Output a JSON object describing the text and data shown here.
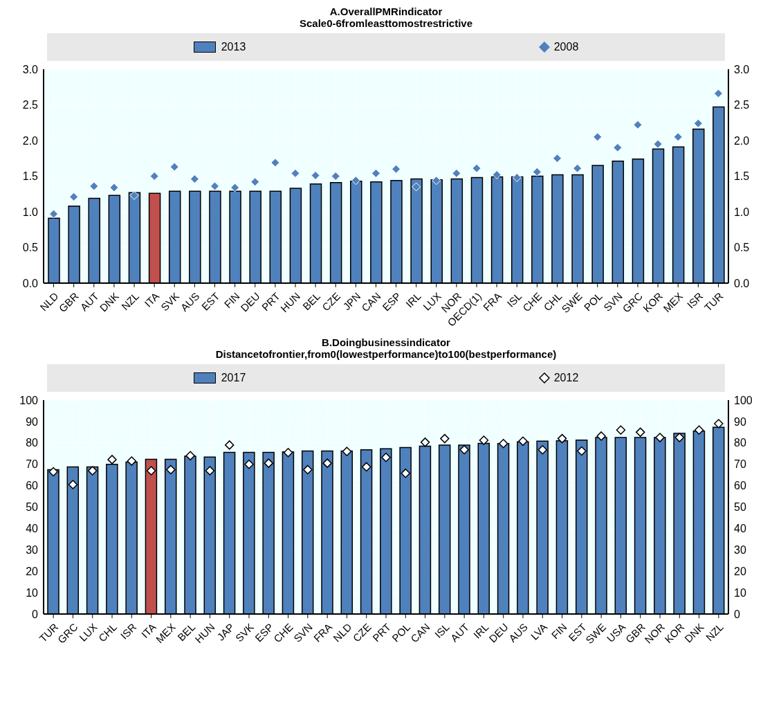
{
  "chart_data": [
    {
      "type": "bar",
      "title": "A.OverallPMRindicator",
      "subtitle": "Scale0-6fromleasttomostrestrictive",
      "categories": [
        "NLD",
        "GBR",
        "AUT",
        "DNK",
        "NZL",
        "ITA",
        "SVK",
        "AUS",
        "EST",
        "FIN",
        "DEU",
        "PRT",
        "HUN",
        "BEL",
        "CZE",
        "JPN",
        "CAN",
        "ESP",
        "IRL",
        "LUX",
        "NOR",
        "OECD(1)",
        "FRA",
        "ISL",
        "CHE",
        "CHL",
        "SWE",
        "POL",
        "SVN",
        "GRC",
        "KOR",
        "MEX",
        "ISR",
        "TUR"
      ],
      "series": [
        {
          "name": "2013",
          "type": "bar",
          "color": "#4f81bd",
          "colors": [
            "#4f81bd",
            "#4f81bd",
            "#4f81bd",
            "#4f81bd",
            "#4f81bd",
            "#c0504d",
            "#4f81bd",
            "#4f81bd",
            "#4f81bd",
            "#4f81bd",
            "#4f81bd",
            "#4f81bd",
            "#4f81bd",
            "#4f81bd",
            "#4f81bd",
            "#4f81bd",
            "#4f81bd",
            "#4f81bd",
            "#4f81bd",
            "#4f81bd",
            "#4f81bd",
            "#4f81bd",
            "#4f81bd",
            "#4f81bd",
            "#4f81bd",
            "#4f81bd",
            "#4f81bd",
            "#4f81bd",
            "#4f81bd",
            "#4f81bd",
            "#4f81bd",
            "#4f81bd",
            "#4f81bd",
            "#4f81bd"
          ],
          "values": [
            0.91,
            1.08,
            1.19,
            1.23,
            1.27,
            1.26,
            1.29,
            1.29,
            1.29,
            1.29,
            1.29,
            1.29,
            1.33,
            1.39,
            1.41,
            1.43,
            1.42,
            1.44,
            1.46,
            1.45,
            1.46,
            1.48,
            1.49,
            1.49,
            1.5,
            1.52,
            1.52,
            1.65,
            1.71,
            1.74,
            1.88,
            1.91,
            2.16,
            2.47
          ]
        },
        {
          "name": "2008",
          "type": "scatter",
          "color": "#4f81bd",
          "values": [
            0.97,
            1.21,
            1.36,
            1.34,
            1.23,
            1.5,
            1.63,
            1.46,
            1.36,
            1.34,
            1.42,
            1.69,
            1.54,
            1.51,
            1.5,
            1.44,
            1.54,
            1.6,
            1.35,
            1.44,
            1.54,
            1.61,
            1.52,
            1.48,
            1.56,
            1.75,
            1.61,
            2.05,
            1.9,
            2.22,
            1.95,
            2.05,
            2.24,
            2.66
          ]
        }
      ],
      "ylim": [
        0,
        3
      ],
      "yticks": [
        {
          "value": 0,
          "label": "0.0"
        },
        {
          "value": 0.5,
          "label": "0.5"
        },
        {
          "value": 1,
          "label": "1.0"
        },
        {
          "value": 1.5,
          "label": "1.5"
        },
        {
          "value": 2,
          "label": "2.0"
        },
        {
          "value": 2.5,
          "label": "2.5"
        },
        {
          "value": 3,
          "label": "3.0"
        }
      ],
      "y2lim": [
        0,
        3
      ],
      "y2ticks": [
        {
          "value": 0,
          "label": "0.0"
        },
        {
          "value": 0.5,
          "label": "0.5"
        },
        {
          "value": 1,
          "label": "1.0"
        },
        {
          "value": 1.5,
          "label": "1.5"
        },
        {
          "value": 2,
          "label": "2.0"
        },
        {
          "value": 2.5,
          "label": "2.5"
        },
        {
          "value": 3,
          "label": "3.0"
        }
      ],
      "grid": true,
      "legend": "top",
      "marker": "diamond"
    },
    {
      "type": "bar",
      "title": "B.Doingbusinessindicator",
      "subtitle": "Distancetofrontier,from0(lowestperformance)to100(bestperformance)",
      "categories": [
        "TUR",
        "GRC",
        "LUX",
        "CHL",
        "ISR",
        "ITA",
        "MEX",
        "BEL",
        "HUN",
        "JAP",
        "SVK",
        "ESP",
        "CHE",
        "SVN",
        "FRA",
        "NLD",
        "CZE",
        "PRT",
        "POL",
        "CAN",
        "ISL",
        "AUT",
        "IRL",
        "DEU",
        "AUS",
        "LVA",
        "FIN",
        "EST",
        "SWE",
        "USA",
        "GBR",
        "NOR",
        "KOR",
        "DNK",
        "NZL"
      ],
      "series": [
        {
          "name": "2017",
          "type": "bar",
          "color": "#4f81bd",
          "colors": [
            "#4f81bd",
            "#4f81bd",
            "#4f81bd",
            "#4f81bd",
            "#4f81bd",
            "#c0504d",
            "#4f81bd",
            "#4f81bd",
            "#4f81bd",
            "#4f81bd",
            "#4f81bd",
            "#4f81bd",
            "#4f81bd",
            "#4f81bd",
            "#4f81bd",
            "#4f81bd",
            "#4f81bd",
            "#4f81bd",
            "#4f81bd",
            "#4f81bd",
            "#4f81bd",
            "#4f81bd",
            "#4f81bd",
            "#4f81bd",
            "#4f81bd",
            "#4f81bd",
            "#4f81bd",
            "#4f81bd",
            "#4f81bd",
            "#4f81bd",
            "#4f81bd",
            "#4f81bd",
            "#4f81bd",
            "#4f81bd",
            "#4f81bd"
          ],
          "values": [
            67.5,
            68.8,
            68.8,
            70,
            71,
            72.3,
            72.3,
            73.8,
            73.4,
            75.6,
            75.6,
            75.6,
            75.8,
            76.2,
            76.2,
            76.2,
            76.8,
            77.3,
            77.8,
            78.5,
            79,
            79,
            79.8,
            79.7,
            80.5,
            80.8,
            81,
            81.3,
            82.5,
            82.5,
            82.5,
            82.5,
            84.5,
            85.5,
            87.3
          ]
        },
        {
          "name": "2012",
          "type": "scatter",
          "color": "#ffffff",
          "values": [
            66.5,
            60.5,
            67,
            72.2,
            71.5,
            67,
            67.5,
            74,
            67,
            79,
            70,
            70.5,
            75.5,
            67.5,
            70.5,
            76,
            68.8,
            73.2,
            65.8,
            80.3,
            82,
            76.8,
            81.2,
            79.7,
            80.8,
            76.8,
            82,
            76.2,
            83.2,
            86,
            85,
            82.5,
            82.5,
            86,
            89
          ]
        }
      ],
      "ylim": [
        0,
        100
      ],
      "yticks": [
        0,
        10,
        20,
        30,
        40,
        50,
        60,
        70,
        80,
        90,
        100
      ],
      "y2lim": [
        0,
        100
      ],
      "y2ticks": [
        0,
        10,
        20,
        30,
        40,
        50,
        60,
        70,
        80,
        90,
        100
      ],
      "grid": true,
      "legend": "top",
      "marker": "diamond"
    }
  ]
}
